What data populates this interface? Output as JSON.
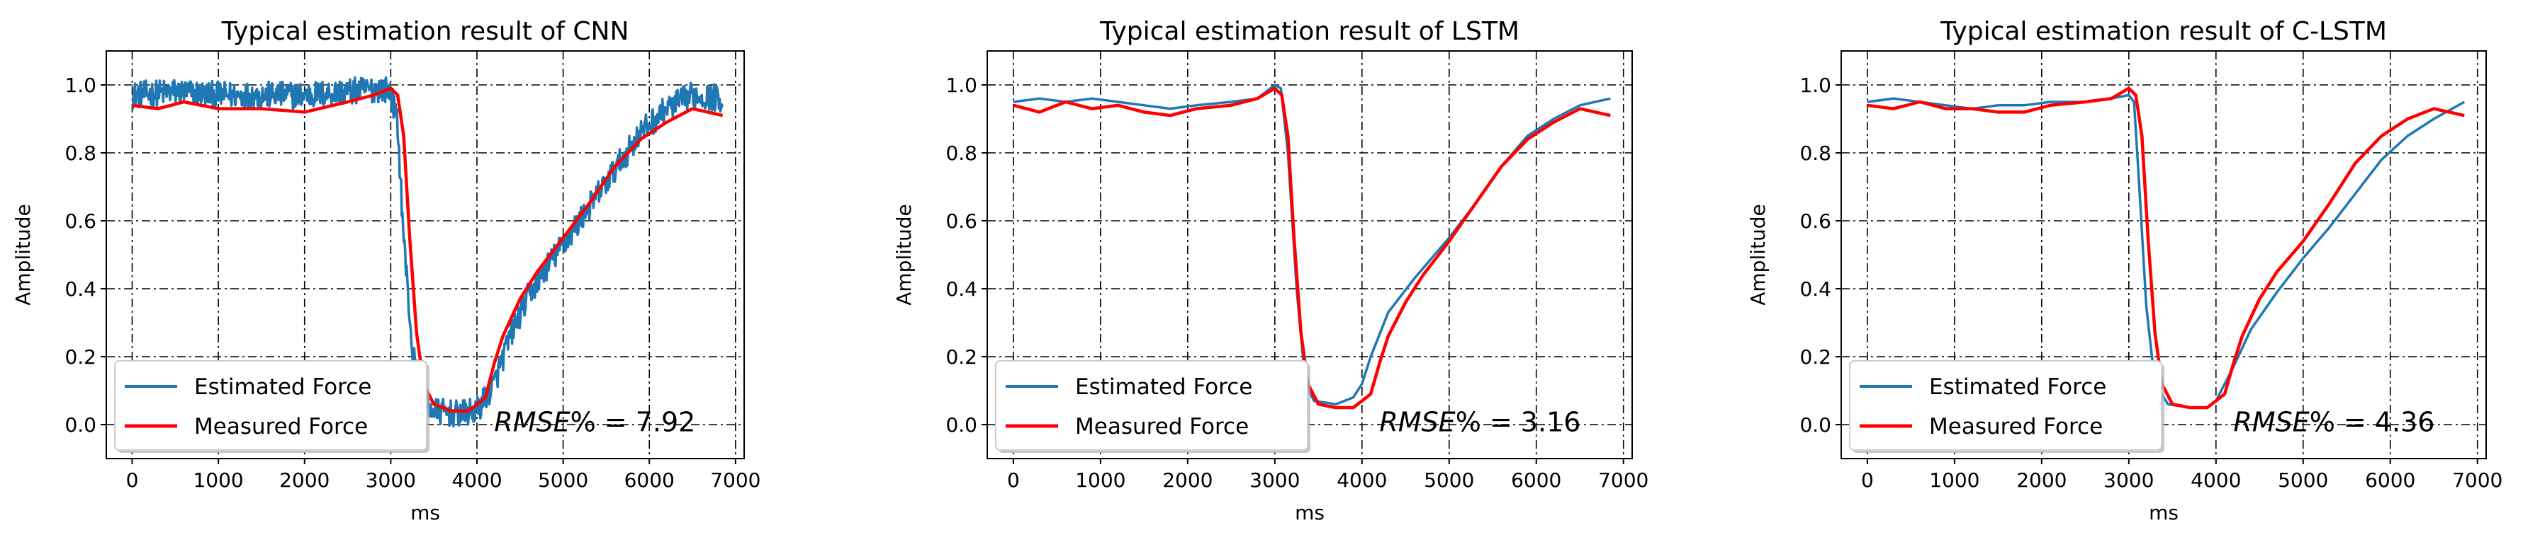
{
  "colors": {
    "estimated": "#1f77b4",
    "measured": "#ff0000",
    "grid": "#000000"
  },
  "chart_data": [
    {
      "type": "line",
      "title": "Typical estimation result of CNN",
      "xlabel": "ms",
      "ylabel": "Amplitude",
      "xlim": [
        -300,
        7100
      ],
      "ylim": [
        -0.1,
        1.1
      ],
      "xticks": [
        0,
        1000,
        2000,
        3000,
        4000,
        5000,
        6000,
        7000
      ],
      "xtick_labels": [
        "0",
        "1000",
        "2000",
        "3000",
        "4000",
        "5000",
        "6000",
        "7000"
      ],
      "yticks": [
        0.0,
        0.2,
        0.4,
        0.6,
        0.8,
        1.0
      ],
      "ytick_labels": [
        "0.0",
        "0.2",
        "0.4",
        "0.6",
        "0.8",
        "1.0"
      ],
      "grid": true,
      "legend": "lower-left",
      "annotation": {
        "prefix": "RMSE",
        "suffix": "% = 7.92",
        "x": 4200,
        "y": -0.02
      },
      "series": [
        {
          "name": "Estimated Force",
          "noise": 0.04,
          "points": [
            [
              0,
              0.97
            ],
            [
              500,
              0.98
            ],
            [
              1000,
              0.97
            ],
            [
              1500,
              0.97
            ],
            [
              2000,
              0.97
            ],
            [
              2500,
              0.98
            ],
            [
              2900,
              0.99
            ],
            [
              3000,
              0.98
            ],
            [
              3080,
              0.88
            ],
            [
              3150,
              0.55
            ],
            [
              3250,
              0.22
            ],
            [
              3350,
              0.08
            ],
            [
              3500,
              0.04
            ],
            [
              3800,
              0.03
            ],
            [
              4000,
              0.04
            ],
            [
              4200,
              0.12
            ],
            [
              4400,
              0.27
            ],
            [
              4600,
              0.38
            ],
            [
              4800,
              0.46
            ],
            [
              5000,
              0.53
            ],
            [
              5300,
              0.64
            ],
            [
              5600,
              0.75
            ],
            [
              5900,
              0.86
            ],
            [
              6200,
              0.93
            ],
            [
              6500,
              0.97
            ],
            [
              6850,
              0.96
            ]
          ]
        },
        {
          "name": "Measured Force",
          "noise": 0.0,
          "points": [
            [
              0,
              0.94
            ],
            [
              300,
              0.93
            ],
            [
              600,
              0.95
            ],
            [
              1000,
              0.93
            ],
            [
              1500,
              0.93
            ],
            [
              2000,
              0.92
            ],
            [
              2500,
              0.95
            ],
            [
              2800,
              0.97
            ],
            [
              3000,
              0.99
            ],
            [
              3080,
              0.97
            ],
            [
              3150,
              0.85
            ],
            [
              3220,
              0.55
            ],
            [
              3300,
              0.27
            ],
            [
              3380,
              0.12
            ],
            [
              3500,
              0.06
            ],
            [
              3700,
              0.04
            ],
            [
              3900,
              0.04
            ],
            [
              4100,
              0.08
            ],
            [
              4200,
              0.18
            ],
            [
              4300,
              0.26
            ],
            [
              4500,
              0.37
            ],
            [
              4700,
              0.45
            ],
            [
              5000,
              0.55
            ],
            [
              5300,
              0.65
            ],
            [
              5600,
              0.76
            ],
            [
              5900,
              0.84
            ],
            [
              6200,
              0.89
            ],
            [
              6500,
              0.93
            ],
            [
              6850,
              0.91
            ]
          ]
        }
      ]
    },
    {
      "type": "line",
      "title": "Typical estimation result of LSTM",
      "xlabel": "ms",
      "ylabel": "Amplitude",
      "xlim": [
        -300,
        7100
      ],
      "ylim": [
        -0.1,
        1.1
      ],
      "xticks": [
        0,
        1000,
        2000,
        3000,
        4000,
        5000,
        6000,
        7000
      ],
      "xtick_labels": [
        "0",
        "1000",
        "2000",
        "3000",
        "4000",
        "5000",
        "6000",
        "7000"
      ],
      "yticks": [
        0.0,
        0.2,
        0.4,
        0.6,
        0.8,
        1.0
      ],
      "ytick_labels": [
        "0.0",
        "0.2",
        "0.4",
        "0.6",
        "0.8",
        "1.0"
      ],
      "grid": true,
      "legend": "lower-left",
      "annotation": {
        "prefix": "RMSE",
        "suffix": "% = 3.16",
        "x": 4200,
        "y": -0.02
      },
      "series": [
        {
          "name": "Estimated Force",
          "noise": 0.0,
          "points": [
            [
              0,
              0.95
            ],
            [
              300,
              0.96
            ],
            [
              600,
              0.95
            ],
            [
              900,
              0.96
            ],
            [
              1200,
              0.95
            ],
            [
              1500,
              0.94
            ],
            [
              1800,
              0.93
            ],
            [
              2100,
              0.94
            ],
            [
              2500,
              0.95
            ],
            [
              2800,
              0.96
            ],
            [
              3000,
              1.0
            ],
            [
              3070,
              0.99
            ],
            [
              3150,
              0.8
            ],
            [
              3250,
              0.4
            ],
            [
              3350,
              0.12
            ],
            [
              3450,
              0.07
            ],
            [
              3700,
              0.06
            ],
            [
              3900,
              0.08
            ],
            [
              4000,
              0.12
            ],
            [
              4100,
              0.2
            ],
            [
              4300,
              0.33
            ],
            [
              4600,
              0.43
            ],
            [
              5000,
              0.55
            ],
            [
              5300,
              0.65
            ],
            [
              5600,
              0.76
            ],
            [
              5900,
              0.85
            ],
            [
              6200,
              0.9
            ],
            [
              6500,
              0.94
            ],
            [
              6850,
              0.96
            ]
          ]
        },
        {
          "name": "Measured Force",
          "noise": 0.0,
          "points": [
            [
              0,
              0.94
            ],
            [
              300,
              0.92
            ],
            [
              600,
              0.95
            ],
            [
              900,
              0.93
            ],
            [
              1200,
              0.94
            ],
            [
              1500,
              0.92
            ],
            [
              1800,
              0.91
            ],
            [
              2100,
              0.93
            ],
            [
              2500,
              0.94
            ],
            [
              2800,
              0.96
            ],
            [
              3000,
              0.99
            ],
            [
              3080,
              0.97
            ],
            [
              3150,
              0.85
            ],
            [
              3220,
              0.55
            ],
            [
              3300,
              0.27
            ],
            [
              3380,
              0.12
            ],
            [
              3500,
              0.06
            ],
            [
              3700,
              0.05
            ],
            [
              3900,
              0.05
            ],
            [
              4100,
              0.09
            ],
            [
              4200,
              0.18
            ],
            [
              4300,
              0.26
            ],
            [
              4500,
              0.36
            ],
            [
              4700,
              0.44
            ],
            [
              5000,
              0.54
            ],
            [
              5300,
              0.65
            ],
            [
              5600,
              0.76
            ],
            [
              5900,
              0.84
            ],
            [
              6200,
              0.89
            ],
            [
              6500,
              0.93
            ],
            [
              6850,
              0.91
            ]
          ]
        }
      ]
    },
    {
      "type": "line",
      "title": "Typical estimation result of C-LSTM",
      "xlabel": "ms",
      "ylabel": "Amplitude",
      "xlim": [
        -300,
        7100
      ],
      "ylim": [
        -0.1,
        1.1
      ],
      "xticks": [
        0,
        1000,
        2000,
        3000,
        4000,
        5000,
        6000,
        7000
      ],
      "xtick_labels": [
        "0",
        "1000",
        "2000",
        "3000",
        "4000",
        "5000",
        "6000",
        "7000"
      ],
      "yticks": [
        0.0,
        0.2,
        0.4,
        0.6,
        0.8,
        1.0
      ],
      "ytick_labels": [
        "0.0",
        "0.2",
        "0.4",
        "0.6",
        "0.8",
        "1.0"
      ],
      "grid": true,
      "legend": "lower-left",
      "annotation": {
        "prefix": "RMSE",
        "suffix": "% = 4.36",
        "x": 4200,
        "y": -0.02
      },
      "series": [
        {
          "name": "Estimated Force",
          "noise": 0.0,
          "points": [
            [
              0,
              0.95
            ],
            [
              300,
              0.96
            ],
            [
              600,
              0.95
            ],
            [
              900,
              0.94
            ],
            [
              1200,
              0.93
            ],
            [
              1500,
              0.94
            ],
            [
              1800,
              0.94
            ],
            [
              2100,
              0.95
            ],
            [
              2500,
              0.95
            ],
            [
              2800,
              0.96
            ],
            [
              3000,
              0.97
            ],
            [
              3060,
              0.95
            ],
            [
              3120,
              0.7
            ],
            [
              3200,
              0.35
            ],
            [
              3300,
              0.12
            ],
            [
              3450,
              0.06
            ],
            [
              3700,
              0.05
            ],
            [
              3900,
              0.05
            ],
            [
              4000,
              0.07
            ],
            [
              4200,
              0.17
            ],
            [
              4400,
              0.28
            ],
            [
              4700,
              0.39
            ],
            [
              5000,
              0.49
            ],
            [
              5300,
              0.58
            ],
            [
              5600,
              0.68
            ],
            [
              5900,
              0.78
            ],
            [
              6200,
              0.85
            ],
            [
              6500,
              0.9
            ],
            [
              6850,
              0.95
            ]
          ]
        },
        {
          "name": "Measured Force",
          "noise": 0.0,
          "points": [
            [
              0,
              0.94
            ],
            [
              300,
              0.93
            ],
            [
              600,
              0.95
            ],
            [
              900,
              0.93
            ],
            [
              1200,
              0.93
            ],
            [
              1500,
              0.92
            ],
            [
              1800,
              0.92
            ],
            [
              2100,
              0.94
            ],
            [
              2500,
              0.95
            ],
            [
              2800,
              0.96
            ],
            [
              3000,
              0.99
            ],
            [
              3080,
              0.97
            ],
            [
              3150,
              0.85
            ],
            [
              3220,
              0.55
            ],
            [
              3300,
              0.27
            ],
            [
              3380,
              0.12
            ],
            [
              3500,
              0.06
            ],
            [
              3700,
              0.05
            ],
            [
              3900,
              0.05
            ],
            [
              4100,
              0.09
            ],
            [
              4200,
              0.18
            ],
            [
              4300,
              0.26
            ],
            [
              4500,
              0.37
            ],
            [
              4700,
              0.45
            ],
            [
              5000,
              0.54
            ],
            [
              5300,
              0.65
            ],
            [
              5600,
              0.77
            ],
            [
              5900,
              0.85
            ],
            [
              6200,
              0.9
            ],
            [
              6500,
              0.93
            ],
            [
              6850,
              0.91
            ]
          ]
        }
      ]
    }
  ]
}
